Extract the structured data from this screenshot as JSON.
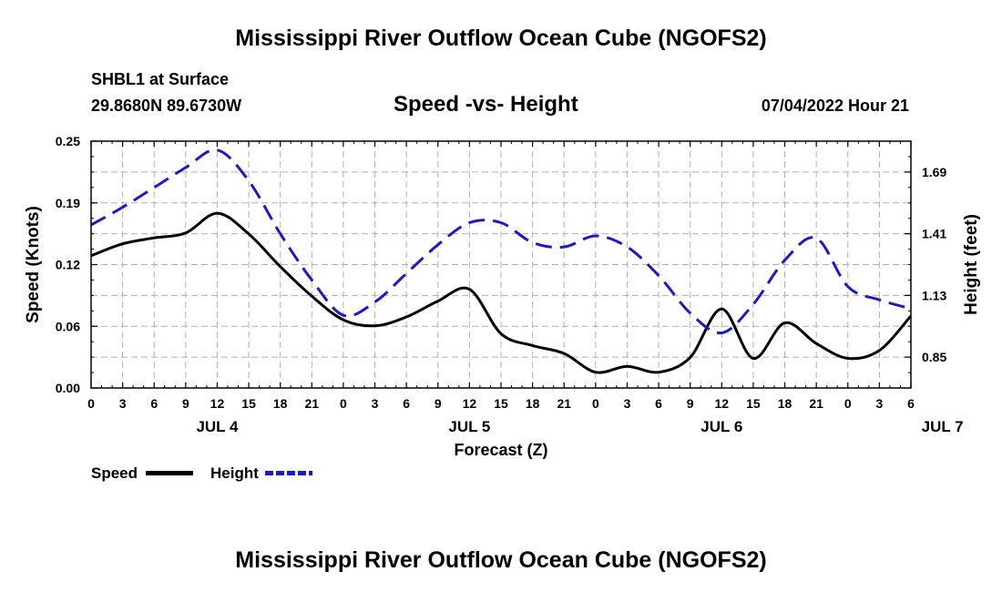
{
  "header": {
    "title": "Mississippi River Outflow Ocean Cube (NGOFS2)",
    "station": "SHBL1 at Surface",
    "coords": "29.8680N  89.6730W",
    "datetime": "07/04/2022 Hour 21"
  },
  "footer": {
    "title": "Mississippi River Outflow Ocean Cube (NGOFS2)"
  },
  "legend": {
    "speed_label": "Speed",
    "height_label": "Height"
  },
  "colors": {
    "speed": "#000000",
    "height": "#1a1acc",
    "grid": "#b0b0b0"
  },
  "chart_data": {
    "type": "line",
    "title": "Speed -vs- Height",
    "xlabel": "Forecast (Z)",
    "ylabel_left": "Speed (Knots)",
    "ylabel_right": "Height (feet)",
    "x_tick_labels": [
      "0",
      "3",
      "6",
      "9",
      "12",
      "15",
      "18",
      "21",
      "0",
      "3",
      "6",
      "9",
      "12",
      "15",
      "18",
      "21",
      "0",
      "3",
      "6",
      "9",
      "12",
      "15",
      "18",
      "21",
      "0",
      "3",
      "6"
    ],
    "day_labels": [
      {
        "label": "JUL 4",
        "hour": 12
      },
      {
        "label": "JUL 5",
        "hour": 36
      },
      {
        "label": "JUL 6",
        "hour": 60
      },
      {
        "label": "JUL 7",
        "hour": 81
      }
    ],
    "xlim": [
      0,
      78
    ],
    "ylim_left": [
      0,
      0.25
    ],
    "yticks_left": [
      "0.00",
      "0.06",
      "0.12",
      "0.19",
      "0.25"
    ],
    "yticks_left_values": [
      0,
      0.0625,
      0.125,
      0.1875,
      0.25
    ],
    "ylim_right": [
      0.71,
      1.83
    ],
    "yticks_right": [
      "0.85",
      "1.13",
      "1.41",
      "1.69"
    ],
    "yticks_right_values": [
      0.85,
      1.13,
      1.41,
      1.69
    ],
    "series": [
      {
        "name": "Speed",
        "axis": "left",
        "x": [
          0,
          3,
          6,
          9,
          12,
          15,
          18,
          21,
          24,
          27,
          30,
          33,
          36,
          39,
          42,
          45,
          48,
          51,
          54,
          57,
          60,
          63,
          66,
          69,
          72,
          75,
          78
        ],
        "values": [
          0.134,
          0.146,
          0.152,
          0.157,
          0.177,
          0.156,
          0.123,
          0.093,
          0.069,
          0.063,
          0.072,
          0.088,
          0.1,
          0.055,
          0.043,
          0.035,
          0.016,
          0.022,
          0.016,
          0.031,
          0.08,
          0.03,
          0.066,
          0.045,
          0.03,
          0.038,
          0.073
        ]
      },
      {
        "name": "Height",
        "axis": "right",
        "x": [
          0,
          3,
          6,
          9,
          12,
          15,
          18,
          21,
          24,
          27,
          30,
          33,
          36,
          39,
          42,
          45,
          48,
          51,
          54,
          57,
          60,
          63,
          66,
          69,
          72,
          75,
          78
        ],
        "values": [
          1.45,
          1.53,
          1.62,
          1.71,
          1.79,
          1.65,
          1.41,
          1.2,
          1.04,
          1.1,
          1.23,
          1.36,
          1.46,
          1.46,
          1.37,
          1.35,
          1.4,
          1.35,
          1.22,
          1.05,
          0.96,
          1.09,
          1.29,
          1.39,
          1.17,
          1.11,
          1.07
        ]
      }
    ]
  }
}
